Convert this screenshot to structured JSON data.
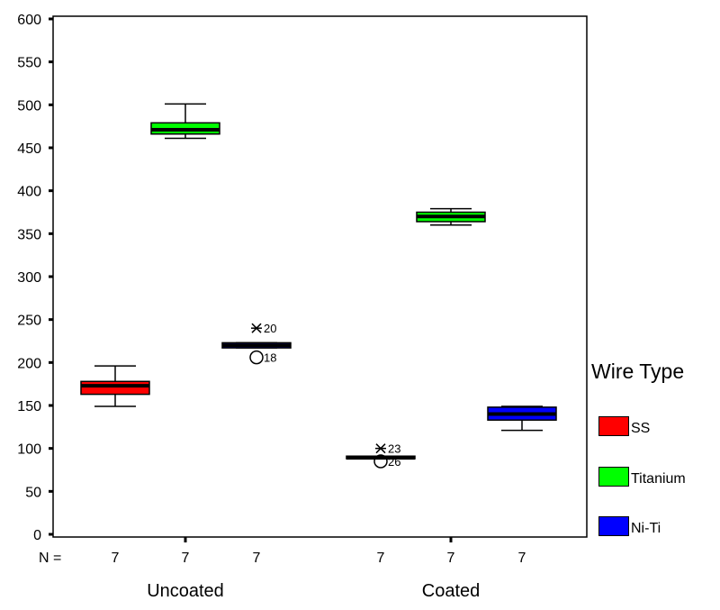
{
  "chart_data": {
    "type": "boxplot",
    "y_ticks": [
      0,
      50,
      100,
      150,
      200,
      250,
      300,
      350,
      400,
      450,
      500,
      550,
      600
    ],
    "ylim": [
      0,
      600
    ],
    "n_label": "N =",
    "groups": [
      "Uncoated",
      "Coated"
    ],
    "legend_title": "Wire Type",
    "series": [
      {
        "name": "SS",
        "color": "#ff0000"
      },
      {
        "name": "Titanium",
        "color": "#00ff00"
      },
      {
        "name": "Ni-Ti",
        "color": "#0000ff"
      }
    ],
    "boxes": [
      {
        "group": "Uncoated",
        "series": "SS",
        "n": "7",
        "min": 149,
        "q1": 163,
        "median": 173,
        "q3": 178,
        "max": 196,
        "outliers": []
      },
      {
        "group": "Uncoated",
        "series": "Titanium",
        "n": "7",
        "min": 461,
        "q1": 466,
        "median": 471,
        "q3": 479,
        "max": 501,
        "outliers": []
      },
      {
        "group": "Uncoated",
        "series": "Ni-Ti",
        "n": "7",
        "min": 217,
        "q1": 217,
        "median": 220,
        "q3": 223,
        "max": 223,
        "outliers": [
          {
            "value": 240,
            "marker": "star",
            "label": "20"
          },
          {
            "value": 206,
            "marker": "circle",
            "label": "18"
          }
        ]
      },
      {
        "group": "Coated",
        "series": "SS",
        "n": "7",
        "min": 88,
        "q1": 88,
        "median": 89,
        "q3": 91,
        "max": 91,
        "outliers": [
          {
            "value": 100,
            "marker": "star",
            "label": "23"
          },
          {
            "value": 85,
            "marker": "circle",
            "label": "26"
          }
        ]
      },
      {
        "group": "Coated",
        "series": "Titanium",
        "n": "7",
        "min": 360,
        "q1": 364,
        "median": 370,
        "q3": 375,
        "max": 379,
        "outliers": []
      },
      {
        "group": "Coated",
        "series": "Ni-Ti",
        "n": "7",
        "min": 121,
        "q1": 133,
        "median": 140,
        "q3": 148,
        "max": 149,
        "outliers": []
      }
    ]
  }
}
